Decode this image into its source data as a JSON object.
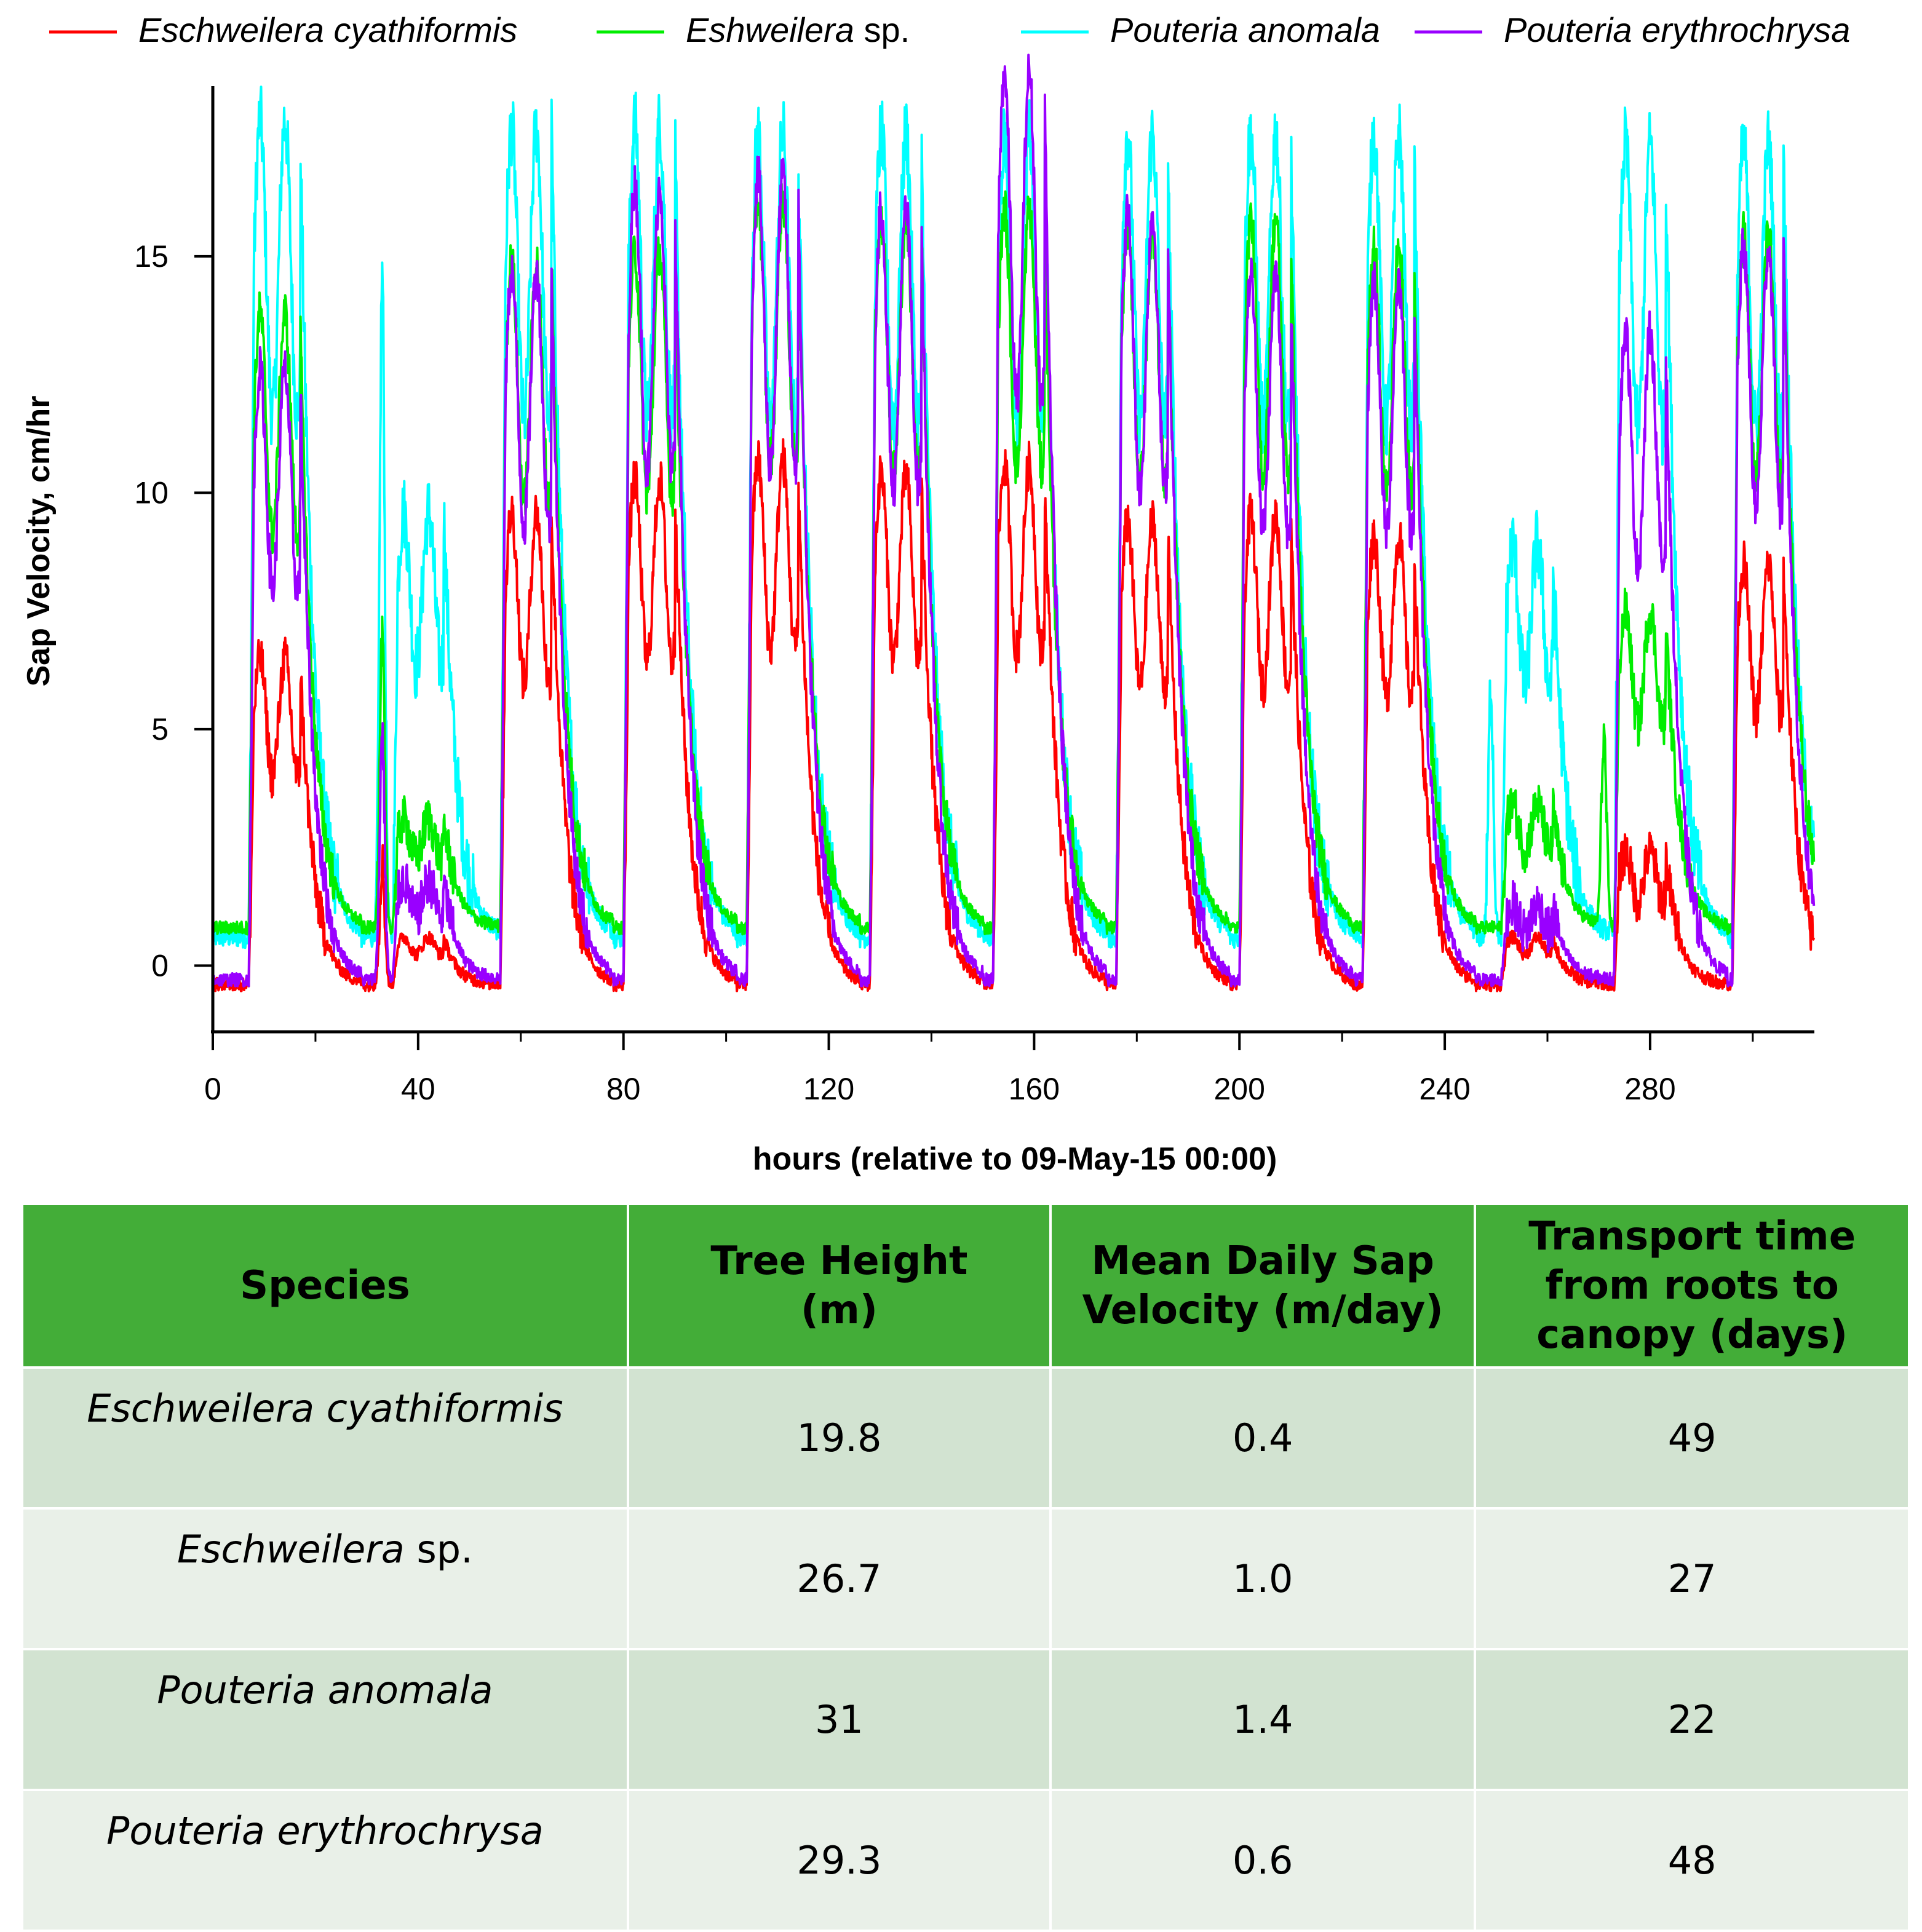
{
  "chart_data": {
    "type": "line",
    "ylabel": "Sap Velocity, cm/hr",
    "xlabel": "hours (relative to 09-May-15 00:00)",
    "xlim": [
      0,
      312
    ],
    "ylim": [
      -1.4,
      18.6
    ],
    "xticks": [
      0,
      40,
      80,
      120,
      160,
      200,
      240,
      280
    ],
    "yticks": [
      0,
      5,
      10,
      15
    ],
    "grid": false,
    "legend_position": "top",
    "series": [
      {
        "name": "Eschweilera cyathiformis",
        "name_italic": "Eschweilera cyathiformis",
        "name_suffix": "",
        "color": "#ff0000",
        "baseline": -0.4,
        "day_peaks": [
          6.5,
          0.6,
          9.6,
          10.3,
          10.7,
          10.4,
          10.6,
          9.4,
          9.5,
          9.1,
          0.6,
          2.4,
          8.5
        ],
        "burst_peaks": [
          0,
          2.2,
          0,
          0,
          0,
          0,
          0,
          0,
          0,
          0,
          0,
          0,
          0
        ]
      },
      {
        "name": "Eshweilera sp.",
        "name_italic": "Eshweilera",
        "name_suffix": " sp.",
        "color": "#00ee00",
        "baseline": 0.8,
        "day_peaks": [
          13.8,
          3.1,
          14.9,
          15.1,
          16.2,
          15.8,
          16.0,
          15.6,
          15.8,
          15.2,
          3.4,
          7.5,
          15.5
        ],
        "burst_peaks": [
          0,
          6.9,
          0,
          0,
          0,
          0,
          0,
          0,
          0,
          0,
          0,
          4.8,
          0
        ]
      },
      {
        "name": "Pouteria anomala",
        "name_italic": "Pouteria anomala",
        "name_suffix": "",
        "color": "#00ffff",
        "baseline": 0.6,
        "day_peaks": [
          17.9,
          9.6,
          17.7,
          17.8,
          17.6,
          17.6,
          17.6,
          17.6,
          17.6,
          17.6,
          8.9,
          17.4,
          17.4
        ],
        "burst_peaks": [
          0,
          14.6,
          0,
          0,
          0,
          0,
          0,
          0,
          0,
          0,
          5.9,
          0,
          0
        ]
      },
      {
        "name": "Pouteria erythrochrysa",
        "name_italic": "Pouteria erythrochrysa",
        "name_suffix": "",
        "color": "#9900ff",
        "baseline": -0.3,
        "day_peaks": [
          12.6,
          1.8,
          14.7,
          16.5,
          16.7,
          16.0,
          18.9,
          15.9,
          14.6,
          14.5,
          1.3,
          13.4,
          15.2
        ],
        "burst_peaks": [
          0,
          4.9,
          0,
          0,
          0,
          0,
          0,
          0,
          0,
          0,
          0,
          0,
          0
        ]
      }
    ],
    "day_centers_hours": [
      12,
      40,
      61,
      85,
      109,
      133,
      157,
      181,
      205,
      229,
      256,
      278,
      301
    ]
  },
  "table": {
    "headers": {
      "species": "Species",
      "height": [
        "Tree Height",
        "(m)"
      ],
      "velocity": [
        "Mean Daily Sap",
        "Velocity (m/day)"
      ],
      "transport": [
        "Transport time",
        "from roots to",
        "canopy (days)"
      ]
    },
    "rows": [
      {
        "species_italic": "Eschweilera cyathiformis",
        "species_suffix": "",
        "height": "19.8",
        "velocity": "0.4",
        "transport": "49"
      },
      {
        "species_italic": "Eschweilera",
        "species_suffix": " sp.",
        "height": "26.7",
        "velocity": "1.0",
        "transport": "27"
      },
      {
        "species_italic": "Pouteria anomala",
        "species_suffix": "",
        "height": "31",
        "velocity": "1.4",
        "transport": "22"
      },
      {
        "species_italic": "Pouteria erythrochrysa",
        "species_suffix": "",
        "height": "29.3",
        "velocity": "0.6",
        "transport": "48"
      }
    ]
  }
}
